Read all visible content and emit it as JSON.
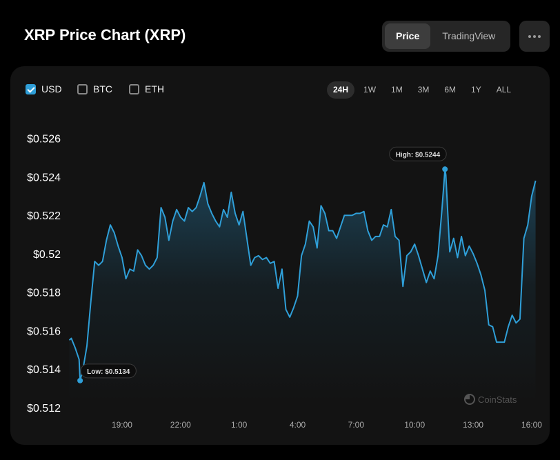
{
  "header": {
    "title": "XRP Price Chart (XRP)"
  },
  "tabs": {
    "options": [
      "Price",
      "TradingView"
    ],
    "active": 0
  },
  "currencies": [
    {
      "label": "USD",
      "checked": true
    },
    {
      "label": "BTC",
      "checked": false
    },
    {
      "label": "ETH",
      "checked": false
    }
  ],
  "ranges": {
    "options": [
      "24H",
      "1W",
      "1M",
      "3M",
      "6M",
      "1Y",
      "ALL"
    ],
    "active": 0
  },
  "watermark": "CoinStats",
  "chart_data": {
    "type": "line",
    "x": [
      16.3,
      16.4,
      16.6,
      16.8,
      16.85,
      17.0,
      17.2,
      17.4,
      17.6,
      17.8,
      18.0,
      18.2,
      18.4,
      18.6,
      18.8,
      19.0,
      19.2,
      19.4,
      19.6,
      19.8,
      20.0,
      20.2,
      20.4,
      20.6,
      20.8,
      21.0,
      21.2,
      21.4,
      21.6,
      21.8,
      22.0,
      22.2,
      22.4,
      22.6,
      22.8,
      23.0,
      23.2,
      23.4,
      23.6,
      23.8,
      24.0,
      24.2,
      24.4,
      24.6,
      24.8,
      25.0,
      25.2,
      25.4,
      25.6,
      25.8,
      26.0,
      26.2,
      26.4,
      26.6,
      26.8,
      27.0,
      27.2,
      27.4,
      27.6,
      27.8,
      28.0,
      28.2,
      28.4,
      28.6,
      28.8,
      29.0,
      29.2,
      29.4,
      29.6,
      29.8,
      30.0,
      30.2,
      30.4,
      30.6,
      30.8,
      31.0,
      31.2,
      31.4,
      31.6,
      31.8,
      32.0,
      32.2,
      32.4,
      32.6,
      32.8,
      33.0,
      33.2,
      33.4,
      33.6,
      33.8,
      34.0,
      34.2,
      34.4,
      34.6,
      34.8,
      35.0,
      35.2,
      35.4,
      35.555,
      35.6,
      35.8,
      36.0,
      36.2,
      36.4,
      36.6,
      36.8,
      37.0,
      37.2,
      37.4,
      37.6,
      37.8,
      38.0,
      38.2,
      38.4,
      38.6,
      38.8,
      39.0,
      39.2,
      39.4,
      39.6,
      39.8,
      40.0,
      40.2
    ],
    "series": [
      {
        "name": "USD",
        "color": "#2f9fd8",
        "values": [
          0.5155,
          0.5156,
          0.5151,
          0.5145,
          0.5134,
          0.514,
          0.5152,
          0.5175,
          0.5196,
          0.5194,
          0.5196,
          0.5207,
          0.5215,
          0.5211,
          0.5204,
          0.5198,
          0.5187,
          0.5192,
          0.5191,
          0.5202,
          0.5199,
          0.5194,
          0.5192,
          0.5194,
          0.5198,
          0.5224,
          0.5219,
          0.5207,
          0.5217,
          0.5223,
          0.5219,
          0.5217,
          0.5224,
          0.5222,
          0.5224,
          0.523,
          0.5237,
          0.5226,
          0.5221,
          0.5217,
          0.5214,
          0.5223,
          0.5219,
          0.5232,
          0.5221,
          0.5215,
          0.5222,
          0.5208,
          0.5194,
          0.5198,
          0.5199,
          0.5197,
          0.5198,
          0.5195,
          0.5196,
          0.5182,
          0.5192,
          0.5171,
          0.5167,
          0.5172,
          0.5178,
          0.5199,
          0.5205,
          0.5217,
          0.5214,
          0.5203,
          0.5225,
          0.5221,
          0.5212,
          0.5212,
          0.5208,
          0.5214,
          0.522,
          0.522,
          0.522,
          0.5221,
          0.5221,
          0.5222,
          0.5212,
          0.5207,
          0.5209,
          0.5209,
          0.5215,
          0.5214,
          0.5223,
          0.5209,
          0.5207,
          0.5183,
          0.5199,
          0.5201,
          0.5205,
          0.5199,
          0.5192,
          0.5185,
          0.5191,
          0.5187,
          0.5199,
          0.5223,
          0.5244,
          0.5241,
          0.5201,
          0.5208,
          0.5198,
          0.5209,
          0.5199,
          0.5204,
          0.52,
          0.5195,
          0.5189,
          0.5181,
          0.5163,
          0.5162,
          0.5154,
          0.5154,
          0.5154,
          0.5162,
          0.5168,
          0.5164,
          0.5166,
          0.5208,
          0.5215,
          0.523,
          0.5238
        ]
      }
    ],
    "xlim": [
      16.28,
      40.25
    ],
    "xticks": [
      {
        "value": 19,
        "label": "19:00"
      },
      {
        "value": 22,
        "label": "22:00"
      },
      {
        "value": 25,
        "label": "1:00"
      },
      {
        "value": 28,
        "label": "4:00"
      },
      {
        "value": 31,
        "label": "7:00"
      },
      {
        "value": 34,
        "label": "10:00"
      },
      {
        "value": 37,
        "label": "13:00"
      },
      {
        "value": 40,
        "label": "16:00"
      }
    ],
    "ylim": [
      0.5116,
      0.5266
    ],
    "yticks": [
      {
        "value": 0.512,
        "label": "$0.512"
      },
      {
        "value": 0.514,
        "label": "$0.514"
      },
      {
        "value": 0.516,
        "label": "$0.516"
      },
      {
        "value": 0.518,
        "label": "$0.518"
      },
      {
        "value": 0.52,
        "label": "$0.52"
      },
      {
        "value": 0.522,
        "label": "$0.522"
      },
      {
        "value": 0.524,
        "label": "$0.524"
      },
      {
        "value": 0.526,
        "label": "$0.526"
      }
    ],
    "annotations": [
      {
        "x": 16.85,
        "value": 0.5134,
        "label": "Low: $0.5134"
      },
      {
        "x": 35.555,
        "value": 0.5244,
        "label": "High: $0.5244"
      }
    ]
  }
}
